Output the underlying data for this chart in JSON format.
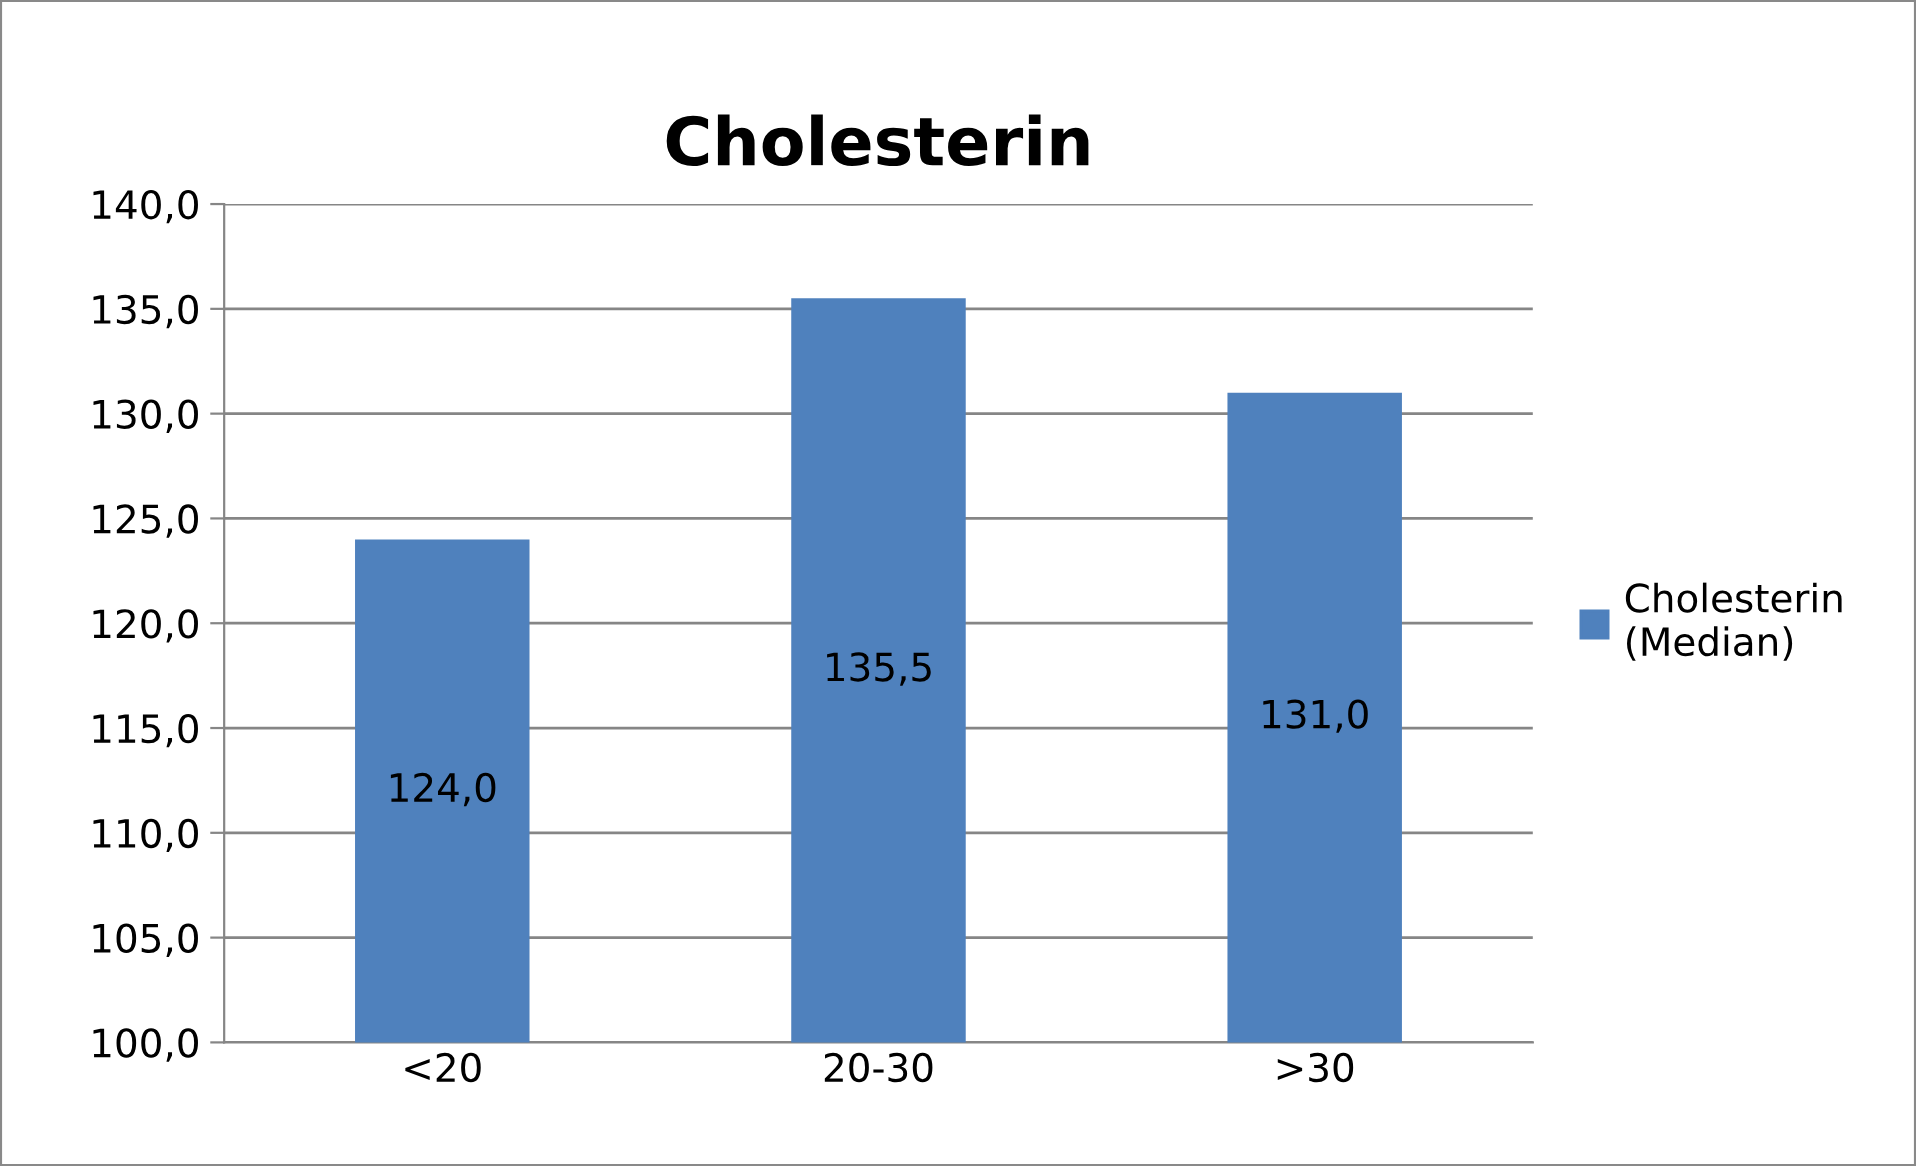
{
  "chart_data": {
    "type": "bar",
    "title": "Cholesterin",
    "categories": [
      "<20",
      "20-30",
      ">30"
    ],
    "series": [
      {
        "name": "Cholesterin\n(Median)",
        "color": "#4f81bd",
        "values": [
          124.0,
          135.5,
          131.0
        ],
        "value_labels": [
          "124,0",
          "135,5",
          "131,0"
        ]
      }
    ],
    "ylim": [
      100,
      140
    ],
    "yticks": [
      {
        "value": 100,
        "label": "100,0"
      },
      {
        "value": 105,
        "label": "105,0"
      },
      {
        "value": 110,
        "label": "110,0"
      },
      {
        "value": 115,
        "label": "115,0"
      },
      {
        "value": 120,
        "label": "120,0"
      },
      {
        "value": 125,
        "label": "125,0"
      },
      {
        "value": 130,
        "label": "130,0"
      },
      {
        "value": 135,
        "label": "135,0"
      },
      {
        "value": 140,
        "label": "140,0"
      }
    ],
    "grid": "y",
    "legend": "right"
  }
}
